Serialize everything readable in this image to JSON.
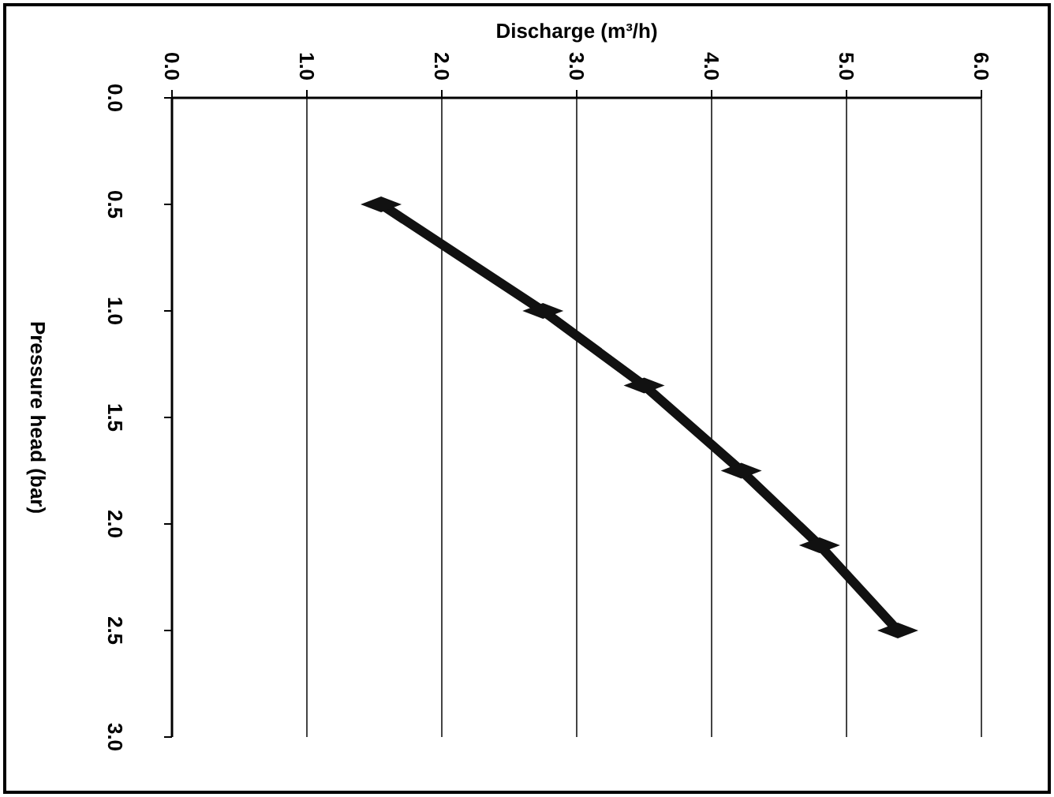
{
  "chart_data": {
    "type": "line",
    "xlabel": "Discharge (m³/h)",
    "ylabel": "Pressure head (bar)",
    "x": [
      1.55,
      2.75,
      3.5,
      4.22,
      4.8,
      5.38
    ],
    "series": [
      {
        "color": "#111111",
        "values": [
          0.5,
          1.0,
          1.35,
          1.75,
          2.1,
          2.5
        ]
      }
    ],
    "xlim": [
      0,
      6
    ],
    "xticks": [
      {
        "value": 0,
        "label": "0.0"
      },
      {
        "value": 1,
        "label": "1.0"
      },
      {
        "value": 2,
        "label": "2.0"
      },
      {
        "value": 3,
        "label": "3.0"
      },
      {
        "value": 4,
        "label": "4.0"
      },
      {
        "value": 5,
        "label": "5.0"
      },
      {
        "value": 6,
        "label": "6.0"
      }
    ],
    "ylim": [
      3,
      0
    ],
    "yticks": [
      {
        "value": 0,
        "label": "0.0"
      },
      {
        "value": 0.5,
        "label": "0.5"
      },
      {
        "value": 1,
        "label": "1.0"
      },
      {
        "value": 1.5,
        "label": "1.5"
      },
      {
        "value": 2,
        "label": "2.0"
      },
      {
        "value": 2.5,
        "label": "2.5"
      },
      {
        "value": 3,
        "label": "3.0"
      }
    ],
    "grid": "x",
    "marker": "diamond",
    "line_style": "solid"
  }
}
